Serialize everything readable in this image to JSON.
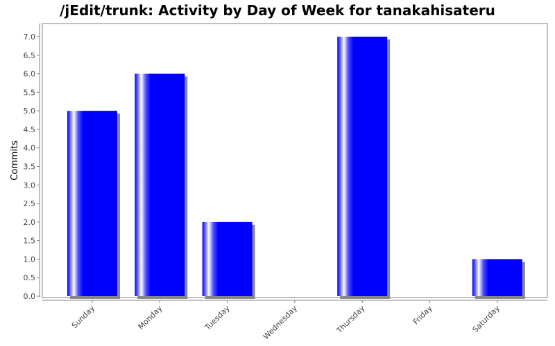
{
  "chart_data": {
    "type": "bar",
    "title": "/jEdit/trunk: Activity by Day of Week for tanakahisateru",
    "xlabel": "",
    "ylabel": "Commits",
    "categories": [
      "Sunday",
      "Monday",
      "Tuesday",
      "Wednesday",
      "Thursday",
      "Friday",
      "Saturday"
    ],
    "values": [
      5,
      6,
      2,
      0,
      7,
      0,
      1
    ],
    "ylim": [
      0,
      7.0
    ],
    "yticks": [
      "0.0",
      "0.5",
      "1.0",
      "1.5",
      "2.0",
      "2.5",
      "3.0",
      "3.5",
      "4.0",
      "4.5",
      "5.0",
      "5.5",
      "6.0",
      "6.5",
      "7.0"
    ],
    "grid": false,
    "bar_color": "#0000ff",
    "shadow_color": "#888888"
  }
}
